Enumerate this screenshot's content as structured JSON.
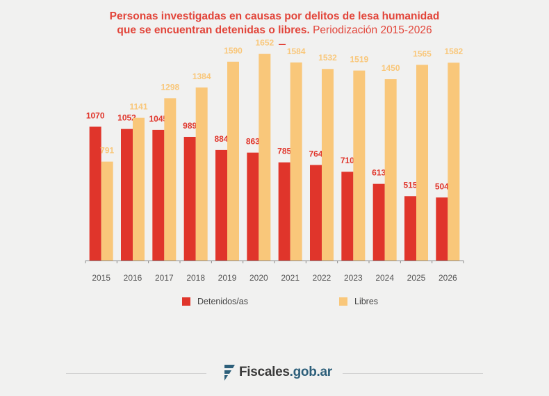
{
  "title": {
    "line1": "Personas investigadas en causas por delitos de lesa humanidad",
    "line2_bold": "que se encuentran detenidas o libres.",
    "line2_light": " Periodización 2015-2026"
  },
  "colors": {
    "detenidos": "#e0352b",
    "libres": "#f9c77a"
  },
  "chart_data": {
    "type": "bar",
    "categories": [
      "2015",
      "2016",
      "2017",
      "2018",
      "2019",
      "2020",
      "2021",
      "2022",
      "2023",
      "2024",
      "2025",
      "2026"
    ],
    "series": [
      {
        "name": "Detenidos/as",
        "values": [
          1070,
          1052,
          1045,
          989,
          884,
          863,
          785,
          764,
          710,
          613,
          515,
          504
        ]
      },
      {
        "name": "Libres",
        "values": [
          791,
          1141,
          1298,
          1384,
          1590,
          1652,
          1584,
          1532,
          1519,
          1450,
          1565,
          1582
        ]
      }
    ],
    "ylim": [
      0,
      1800
    ],
    "grid": false,
    "legend": "bottom"
  },
  "legend": {
    "detenidos": "Detenidos/as",
    "libres": "Libres"
  },
  "footer": {
    "brand_main": "Fiscales",
    "brand_domain": ".gob.ar"
  }
}
